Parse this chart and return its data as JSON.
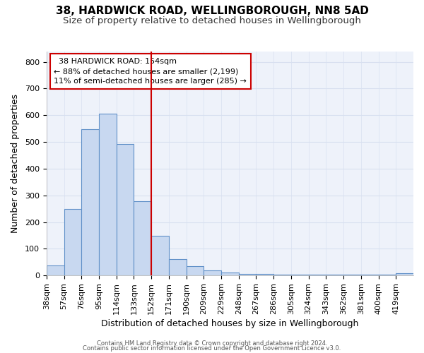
{
  "title1": "38, HARDWICK ROAD, WELLINGBOROUGH, NN8 5AD",
  "title2": "Size of property relative to detached houses in Wellingborough",
  "xlabel": "Distribution of detached houses by size in Wellingborough",
  "ylabel": "Number of detached properties",
  "footer1": "Contains HM Land Registry data © Crown copyright and database right 2024.",
  "footer2": "Contains public sector information licensed under the Open Government Licence v3.0.",
  "bin_labels": [
    "38sqm",
    "57sqm",
    "76sqm",
    "95sqm",
    "114sqm",
    "133sqm",
    "152sqm",
    "171sqm",
    "190sqm",
    "209sqm",
    "229sqm",
    "248sqm",
    "267sqm",
    "286sqm",
    "305sqm",
    "324sqm",
    "343sqm",
    "362sqm",
    "381sqm",
    "400sqm",
    "419sqm"
  ],
  "bar_values": [
    38,
    248,
    548,
    605,
    493,
    277,
    148,
    62,
    35,
    20,
    12,
    5,
    5,
    3,
    3,
    3,
    3,
    3,
    3,
    3,
    8
  ],
  "bar_color": "#c8d8f0",
  "bar_edge_color": "#6090c8",
  "vline_color": "#cc0000",
  "annotation_text": "  38 HARDWICK ROAD: 154sqm\n← 88% of detached houses are smaller (2,199)\n11% of semi-detached houses are larger (285) →",
  "annotation_box_color": "white",
  "annotation_box_edge": "#cc0000",
  "ylim": [
    0,
    840
  ],
  "yticks": [
    0,
    100,
    200,
    300,
    400,
    500,
    600,
    700,
    800
  ],
  "bg_color": "#eef2fa",
  "grid_color": "#d8e0f0",
  "title1_fontsize": 11,
  "title2_fontsize": 9.5,
  "xlabel_fontsize": 9,
  "ylabel_fontsize": 9,
  "tick_fontsize": 8,
  "footer_fontsize": 6
}
